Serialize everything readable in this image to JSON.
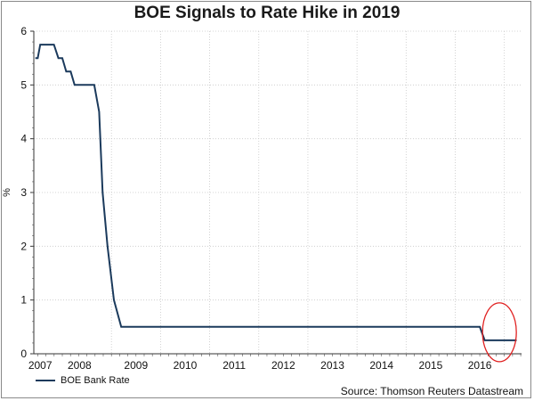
{
  "chart_data": {
    "type": "line",
    "title": "BOE Signals to Rate Hike in 2019",
    "xlabel": "",
    "ylabel": "%",
    "xlim": [
      2006.92,
      2016.85
    ],
    "ylim": [
      0,
      6
    ],
    "yticks": [
      0,
      1,
      2,
      3,
      4,
      5,
      6
    ],
    "xticks": [
      {
        "value": 2007.05,
        "label": "2007"
      },
      {
        "value": 2007.85,
        "label": "2008"
      },
      {
        "value": 2009.0,
        "label": "2009"
      },
      {
        "value": 2010.0,
        "label": "2010"
      },
      {
        "value": 2011.0,
        "label": "2011"
      },
      {
        "value": 2012.0,
        "label": "2012"
      },
      {
        "value": 2013.0,
        "label": "2013"
      },
      {
        "value": 2014.0,
        "label": "2014"
      },
      {
        "value": 2015.0,
        "label": "2015"
      },
      {
        "value": 2016.0,
        "label": "2016"
      }
    ],
    "series": [
      {
        "name": "BOE Bank Rate",
        "color": "#1b3a5c",
        "points": [
          [
            2006.95,
            5.5
          ],
          [
            2007.0,
            5.5
          ],
          [
            2007.05,
            5.75
          ],
          [
            2007.33,
            5.75
          ],
          [
            2007.42,
            5.5
          ],
          [
            2007.5,
            5.5
          ],
          [
            2007.58,
            5.25
          ],
          [
            2007.67,
            5.25
          ],
          [
            2007.75,
            5.0
          ],
          [
            2008.15,
            5.0
          ],
          [
            2008.25,
            4.5
          ],
          [
            2008.32,
            3.0
          ],
          [
            2008.42,
            2.0
          ],
          [
            2008.55,
            1.0
          ],
          [
            2008.7,
            0.5
          ],
          [
            2016.0,
            0.5
          ],
          [
            2016.1,
            0.25
          ],
          [
            2016.75,
            0.25
          ]
        ]
      }
    ],
    "grid": true,
    "legend": "bottom-left",
    "annotations": [
      "red circle highlighting the 2016 rate cut"
    ]
  },
  "legend_label": "BOE Bank Rate",
  "source": "Source: Thomson Reuters Datastream"
}
